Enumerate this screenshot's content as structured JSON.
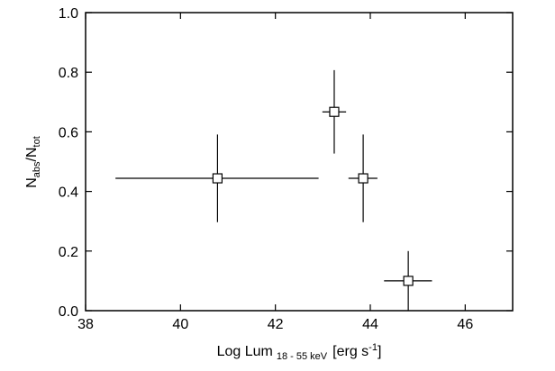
{
  "chart_data": {
    "type": "scatter",
    "xlabel_parts": [
      "Log Lum",
      "18 - 55 keV",
      "[erg s",
      "-1",
      "]"
    ],
    "ylabel_parts": [
      "N",
      "abs",
      "/N",
      "tot"
    ],
    "xlim": [
      38,
      47
    ],
    "xticks": [
      38,
      40,
      42,
      44,
      46
    ],
    "ylim": [
      0,
      1
    ],
    "yticks": [
      {
        "value": 0,
        "label": "0.0"
      },
      0.2,
      0.4,
      0.6,
      0.8,
      {
        "value": 1,
        "label": "1.0"
      }
    ],
    "series": [
      {
        "color": "#000000",
        "marker": "square",
        "x": [
          40.78,
          43.24,
          43.85,
          44.8
        ],
        "values": [
          0.444,
          0.667,
          0.444,
          0.1
        ],
        "xerr_minus": [
          2.15,
          0.25,
          0.31,
          0.51
        ],
        "xerr_plus": [
          2.13,
          0.25,
          0.3,
          0.5
        ],
        "yerr_minus": [
          0.147,
          0.14,
          0.147,
          0.1
        ],
        "yerr_plus": [
          0.147,
          0.14,
          0.147,
          0.1
        ]
      }
    ]
  }
}
